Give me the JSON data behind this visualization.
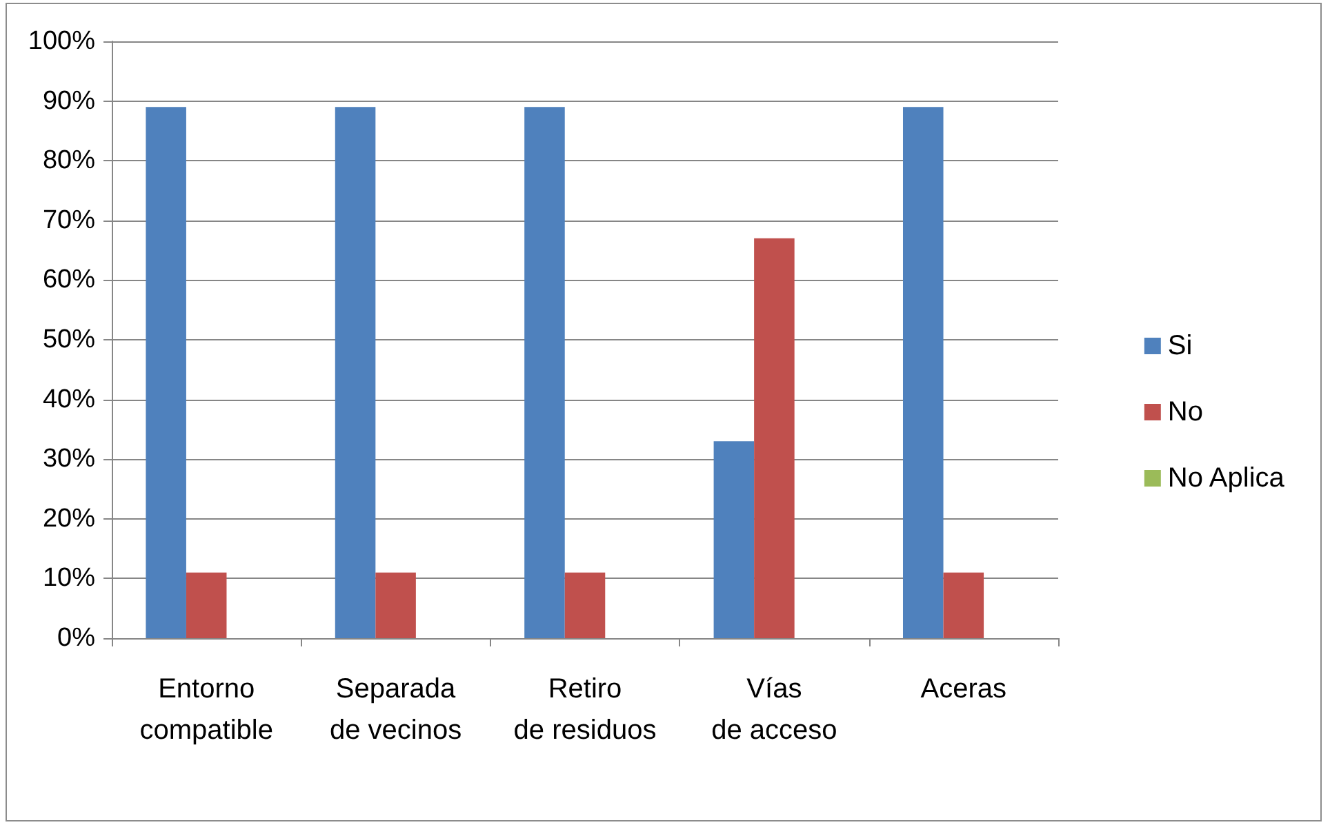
{
  "chart_data": {
    "type": "bar",
    "categories": [
      "Entorno compatible",
      "Separada de vecinos",
      "Retiro de residuos",
      "Vías de acceso",
      "Aceras"
    ],
    "series": [
      {
        "name": "Si",
        "color": "#4f81bd",
        "values": [
          89,
          89,
          89,
          33,
          89
        ]
      },
      {
        "name": "No",
        "color": "#c0504d",
        "values": [
          11,
          11,
          11,
          67,
          11
        ]
      },
      {
        "name": "No Aplica",
        "color": "#9bbb59",
        "values": [
          0,
          0,
          0,
          0,
          0
        ]
      }
    ],
    "ylim": [
      0,
      100
    ],
    "yticks": [
      {
        "value": 0,
        "label": "0%"
      },
      {
        "value": 10,
        "label": "10%"
      },
      {
        "value": 20,
        "label": "20%"
      },
      {
        "value": 30,
        "label": "30%"
      },
      {
        "value": 40,
        "label": "40%"
      },
      {
        "value": 50,
        "label": "50%"
      },
      {
        "value": 60,
        "label": "60%"
      },
      {
        "value": 70,
        "label": "70%"
      },
      {
        "value": 80,
        "label": "80%"
      },
      {
        "value": 90,
        "label": "90%"
      },
      {
        "value": 100,
        "label": "100%"
      }
    ],
    "grid": "y",
    "legend": "right"
  }
}
